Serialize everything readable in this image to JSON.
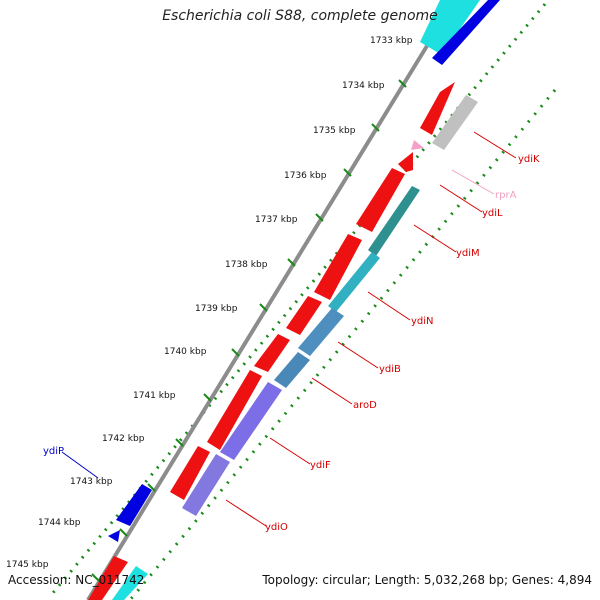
{
  "title": "Escherichia coli S88, complete genome",
  "footer": {
    "accession": "Accession: NC_011742",
    "summary": "Topology: circular; Length: 5,032,268 bp; Genes: 4,894"
  },
  "colors": {
    "backbone": "#8c8c8c",
    "tick_dots": "#1a8a1a",
    "label_default": "#d40000"
  },
  "tick_labels": [
    "1733 kbp",
    "1734 kbp",
    "1735 kbp",
    "1736 kbp",
    "1737 kbp",
    "1738 kbp",
    "1739 kbp",
    "1740 kbp",
    "1741 kbp",
    "1742 kbp",
    "1743 kbp",
    "1744 kbp",
    "1745 kbp"
  ],
  "gene_labels": [
    {
      "name": "ydiK",
      "color": "#d40000"
    },
    {
      "name": "rprA",
      "color": "#f0a0c0"
    },
    {
      "name": "ydiL",
      "color": "#d40000"
    },
    {
      "name": "ydiM",
      "color": "#d40000"
    },
    {
      "name": "ydiN",
      "color": "#d40000"
    },
    {
      "name": "ydiB",
      "color": "#d40000"
    },
    {
      "name": "aroD",
      "color": "#d40000"
    },
    {
      "name": "ydiF",
      "color": "#d40000"
    },
    {
      "name": "ydiO",
      "color": "#d40000"
    },
    {
      "name": "ydiP",
      "color": "#0000cc"
    }
  ]
}
